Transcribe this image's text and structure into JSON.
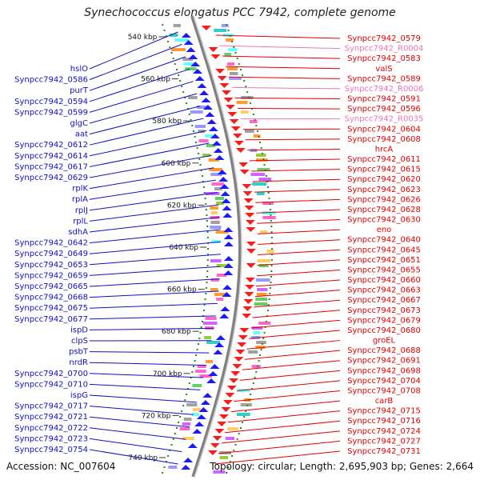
{
  "title": "Synechococcus elongatus PCC 7942, complete genome",
  "footer": {
    "accession": "Accession: NC_007604",
    "topology": "Topology: circular; Length: 2,695,903 bp; Genes: 2,664"
  },
  "colors": {
    "left_label": "#1010c0",
    "right_label": "#e00000",
    "rna_label": "#e878b8",
    "forward_gene": "#1a1aff",
    "reverse_gene": "#ff1a1a",
    "tick": "#228b22",
    "backbone": "#808080"
  },
  "scale_kbp": [
    "540 kbp",
    "560 kbp",
    "580 kbp",
    "600 kbp",
    "620 kbp",
    "640 kbp",
    "660 kbp",
    "680 kbp",
    "700 kbp",
    "720 kbp",
    "740 kbp"
  ],
  "left_labels": [
    "hslO",
    "Synpcc7942_0586",
    "purT",
    "Synpcc7942_0594",
    "Synpcc7942_0599",
    "glgC",
    "aat",
    "Synpcc7942_0612",
    "Synpcc7942_0614",
    "Synpcc7942_0617",
    "Synpcc7942_0629",
    "rplK",
    "rplA",
    "rplJ",
    "rplL",
    "sdhA",
    "Synpcc7942_0642",
    "Synpcc7942_0649",
    "Synpcc7942_0653",
    "Synpcc7942_0659",
    "Synpcc7942_0665",
    "Synpcc7942_0668",
    "Synpcc7942_0675",
    "Synpcc7942_0677",
    "ispD",
    "clpS",
    "psbT",
    "nrdR",
    "Synpcc7942_0700",
    "Synpcc7942_0710",
    "ispG",
    "Synpcc7942_0717",
    "Synpcc7942_0721",
    "Synpcc7942_0722",
    "Synpcc7942_0723",
    "Synpcc7942_0754"
  ],
  "right_labels": [
    "Synpcc7942_0579",
    "Synpcc7942_R0004",
    "Synpcc7942_0583",
    "valS",
    "Synpcc7942_0589",
    "Synpcc7942_R0006",
    "Synpcc7942_0591",
    "Synpcc7942_0596",
    "Synpcc7942_R0035",
    "Synpcc7942_0604",
    "Synpcc7942_0608",
    "hrcA",
    "Synpcc7942_0611",
    "Synpcc7942_0615",
    "Synpcc7942_0620",
    "Synpcc7942_0623",
    "Synpcc7942_0626",
    "Synpcc7942_0628",
    "Synpcc7942_0630",
    "eno",
    "Synpcc7942_0640",
    "Synpcc7942_0645",
    "Synpcc7942_0651",
    "Synpcc7942_0655",
    "Synpcc7942_0660",
    "Synpcc7942_0663",
    "Synpcc7942_0667",
    "Synpcc7942_0673",
    "Synpcc7942_0679",
    "Synpcc7942_0680",
    "groEL",
    "Synpcc7942_0688",
    "Synpcc7942_0691",
    "Synpcc7942_0698",
    "Synpcc7942_0704",
    "Synpcc7942_0708",
    "carB",
    "Synpcc7942_0715",
    "Synpcc7942_0716",
    "Synpcc7942_0724",
    "Synpcc7942_0727",
    "Synpcc7942_0731"
  ]
}
